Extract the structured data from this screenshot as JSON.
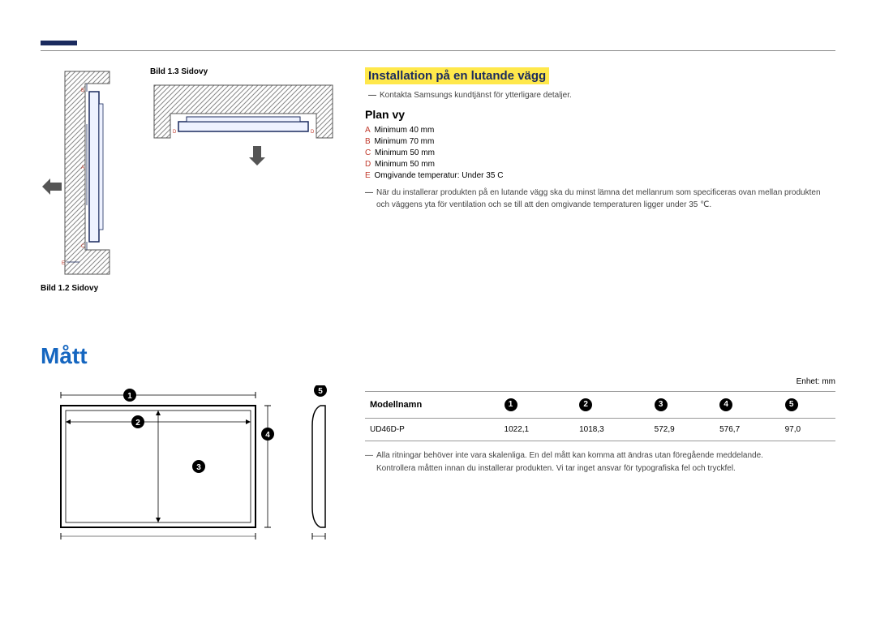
{
  "captions": {
    "bild13": "Bild 1.3 Sidovy",
    "bild12": "Bild 1.2 Sidovy"
  },
  "install": {
    "title": "Installation på en lutande vägg",
    "contact": "Kontakta Samsungs kundtjänst för ytterligare detaljer.",
    "planvy": "Plan vy",
    "specs": [
      {
        "k": "A",
        "v": "Minimum 40 mm"
      },
      {
        "k": "B",
        "v": "Minimum 70 mm"
      },
      {
        "k": "C",
        "v": "Minimum 50 mm"
      },
      {
        "k": "D",
        "v": "Minimum 50 mm"
      },
      {
        "k": "E",
        "v": "Omgivande temperatur: Under 35 C"
      }
    ],
    "note": "När du installerar produkten på en lutande vägg ska du minst lämna det mellanrum som specificeras ovan mellan produkten och väggens yta för ventilation och se till att den omgivande temperaturen ligger under 35 ℃."
  },
  "matt": {
    "title": "Mått",
    "unit": "Enhet: mm",
    "header": {
      "model": "Modellnamn",
      "cols": [
        "1",
        "2",
        "3",
        "4",
        "5"
      ]
    },
    "rows": [
      {
        "model": "UD46D-P",
        "v": [
          "1022,1",
          "1018,3",
          "572,9",
          "576,7",
          "97,0"
        ]
      }
    ],
    "note1": "Alla ritningar behöver inte vara skalenliga. En del mått kan komma att ändras utan föregående meddelande.",
    "note2": "Kontrollera måtten innan du installerar produkten. Vi tar inget ansvar för typografiska fel och tryckfel."
  },
  "colors": {
    "accent": "#1a2a5e",
    "blue": "#1566c0",
    "highlight": "#ffe84b",
    "hatch": "#888888",
    "red": "#c0392b"
  }
}
